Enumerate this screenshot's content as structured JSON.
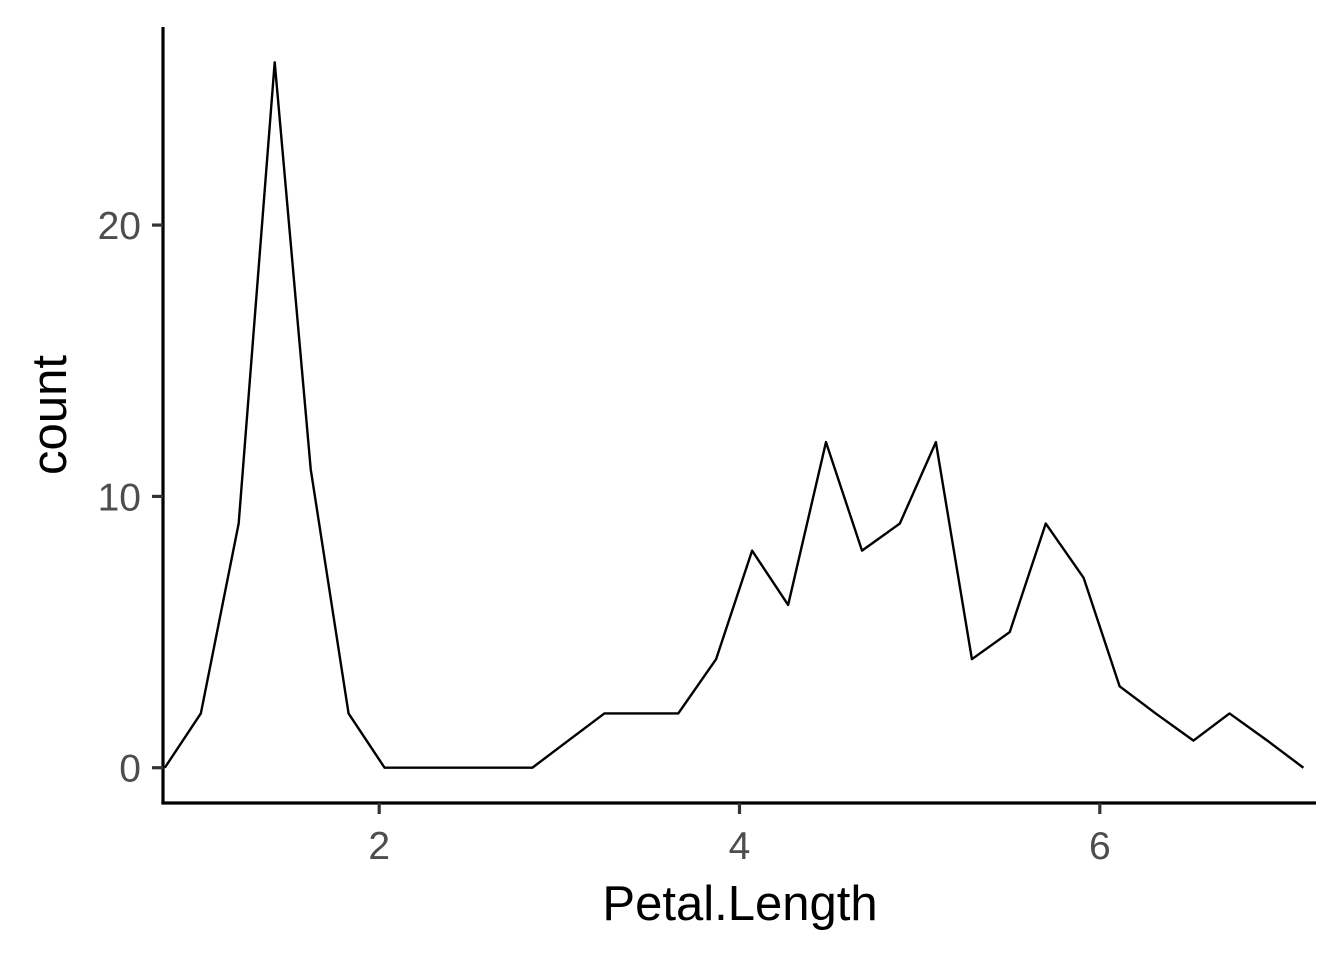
{
  "chart_data": {
    "type": "line",
    "title": "",
    "xlabel": "Petal.Length",
    "ylabel": "count",
    "xlim": [
      0.8,
      7.2
    ],
    "ylim": [
      -1.3,
      27.3
    ],
    "x_ticks": [
      2,
      4,
      6
    ],
    "y_ticks": [
      0,
      10,
      20
    ],
    "grid": false,
    "legend": "none",
    "series": [
      {
        "color": "#000000",
        "x": [
          0.81,
          1.01,
          1.22,
          1.42,
          1.62,
          1.83,
          2.03,
          2.24,
          2.44,
          2.64,
          2.85,
          3.05,
          3.25,
          3.46,
          3.66,
          3.87,
          4.07,
          4.27,
          4.48,
          4.68,
          4.89,
          5.09,
          5.29,
          5.5,
          5.7,
          5.91,
          6.11,
          6.31,
          6.52,
          6.72,
          6.93,
          7.13
        ],
        "y": [
          0,
          2,
          9,
          26,
          11,
          2,
          0,
          0,
          0,
          0,
          0,
          1,
          2,
          2,
          2,
          4,
          8,
          6,
          12,
          8,
          9,
          12,
          4,
          5,
          9,
          7,
          3,
          2,
          1,
          2,
          1,
          0
        ]
      }
    ]
  }
}
